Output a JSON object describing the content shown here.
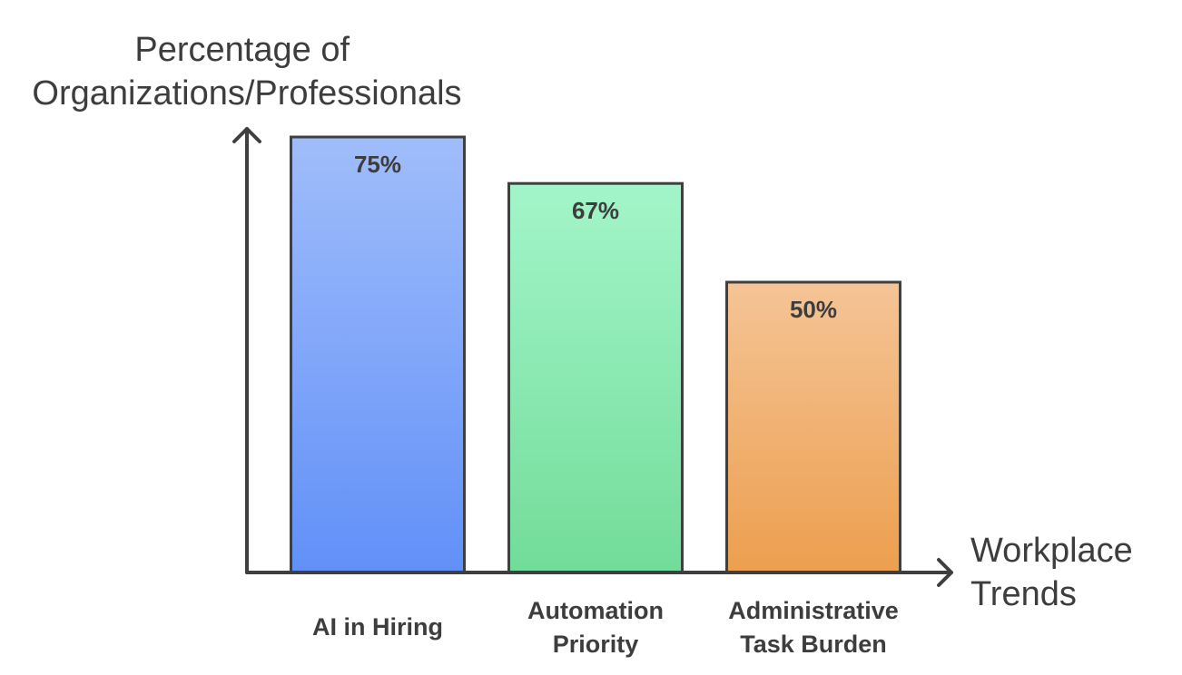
{
  "chart_data": {
    "type": "bar",
    "categories": [
      "AI in Hiring",
      "Automation Priority",
      "Administrative Task Burden"
    ],
    "category_label_lines": [
      [
        "AI in Hiring"
      ],
      [
        "Automation",
        "Priority"
      ],
      [
        "Administrative",
        "Task Burden"
      ]
    ],
    "values": [
      75,
      67,
      50
    ],
    "value_labels": [
      "75%",
      "67%",
      "50%"
    ],
    "ylabel_lines": [
      "Percentage of",
      "Organizations/Professionals"
    ],
    "xlabel_lines": [
      "Workplace",
      "Trends"
    ],
    "ylim": [
      0,
      75
    ],
    "grid": false,
    "legend": "none",
    "bar_colors": [
      {
        "top": "#a0bdfa",
        "bottom": "#6190f8"
      },
      {
        "top": "#a3f5c9",
        "bottom": "#72dc99"
      },
      {
        "top": "#f5c496",
        "bottom": "#ec9f4f"
      }
    ],
    "axis_color": "#3f3f3f",
    "text_color": "#3d3d3d"
  }
}
